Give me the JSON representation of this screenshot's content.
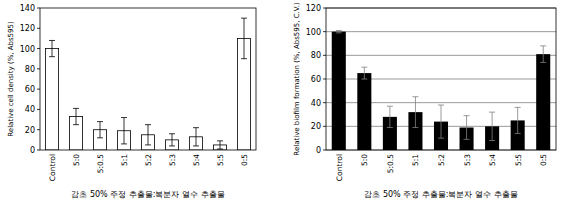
{
  "chart_data": [
    {
      "type": "bar",
      "y_label": "Relative cell density (%, Abs595)",
      "x_label": "감초 50% 주정 추출물:복분자 열수 추출물",
      "categories": [
        "Control",
        "5:0",
        "5:0.5",
        "5:1",
        "5:2",
        "5:3",
        "5:4",
        "5:5",
        "0:5"
      ],
      "values": [
        100,
        33,
        20,
        19,
        15,
        10,
        13,
        5,
        110
      ],
      "errors": [
        8,
        8,
        8,
        13,
        10,
        6,
        9,
        4,
        20
      ],
      "color": "#ffffff",
      "ylim": [
        0,
        140
      ],
      "yticks": [
        0,
        20,
        40,
        60,
        80,
        100,
        120,
        140
      ],
      "grid": false
    },
    {
      "type": "bar",
      "y_label": "Relative biofilm formation (%, Abs595, C.V.)",
      "x_label": "감초 50% 주정 추출물:복분자 열수 추출물",
      "categories": [
        "Control",
        "5:0",
        "5:0.5",
        "5:1",
        "5:2",
        "5:3",
        "5:4",
        "5:5",
        "0:5"
      ],
      "values": [
        100,
        65,
        28,
        32,
        24,
        19,
        20,
        25,
        81
      ],
      "errors": [
        1,
        5,
        9,
        13,
        14,
        10,
        12,
        11,
        7
      ],
      "color": "#000000",
      "ylim": [
        0,
        120
      ],
      "yticks": [
        0,
        20,
        40,
        60,
        80,
        100,
        120
      ],
      "grid": true
    }
  ]
}
